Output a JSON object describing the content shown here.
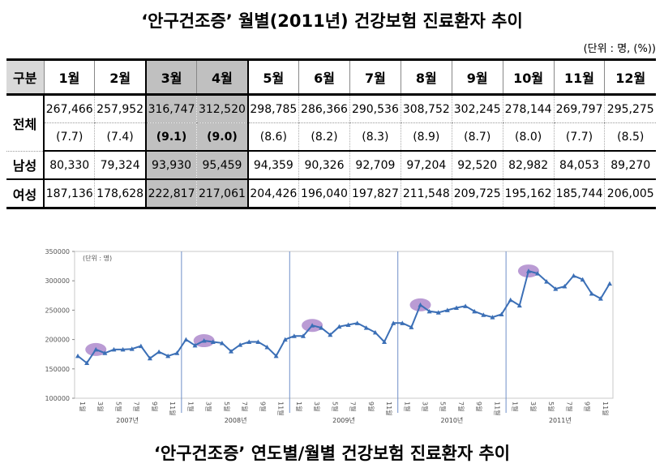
{
  "top_title": "‘안구건조증’ 월별(2011년) 건강보험 진료환자 추이",
  "bottom_title": "‘안구건조증’ 연도별/월별 건강보험 진료환자 추이",
  "unit_note": "(단위 : 명, (%))",
  "table": {
    "corner": "구분",
    "months": [
      "1월",
      "2월",
      "3월",
      "4월",
      "5월",
      "6월",
      "7월",
      "8월",
      "9월",
      "10월",
      "11월",
      "12월"
    ],
    "highlight_months": [
      "3월",
      "4월"
    ],
    "rows": {
      "total_label": "전체",
      "total": [
        "267,466",
        "257,952",
        "316,747",
        "312,520",
        "298,785",
        "286,366",
        "290,536",
        "308,752",
        "302,245",
        "278,144",
        "269,797",
        "295,275"
      ],
      "total_pct": [
        "(7.7)",
        "(7.4)",
        "(9.1)",
        "(9.0)",
        "(8.6)",
        "(8.2)",
        "(8.3)",
        "(8.9)",
        "(8.7)",
        "(8.0)",
        "(7.7)",
        "(8.5)"
      ],
      "male_label": "남성",
      "male": [
        "80,330",
        "79,324",
        "93,930",
        "95,459",
        "94,359",
        "90,326",
        "92,709",
        "97,204",
        "92,520",
        "82,982",
        "84,053",
        "89,270"
      ],
      "female_label": "여성",
      "female": [
        "187,136",
        "178,628",
        "222,817",
        "217,061",
        "204,426",
        "196,040",
        "197,827",
        "211,548",
        "209,725",
        "195,162",
        "185,744",
        "206,005"
      ]
    }
  },
  "chart_data": {
    "type": "line",
    "unit_label": "(단위 : 명)",
    "ylim": [
      100000,
      350000
    ],
    "yticks": [
      "100000",
      "150000",
      "200000",
      "250000",
      "300000",
      "350000"
    ],
    "x_tick_labels": [
      "1월",
      "3월",
      "5월",
      "7월",
      "9월",
      "11월"
    ],
    "years": [
      "2007년",
      "2008년",
      "2009년",
      "2010년",
      "2011년"
    ],
    "line_color": "#3b6fb6",
    "separator_color": "#6f8fc8",
    "highlight_color": "#a982c9",
    "highlight_months": [
      "2007년 3월",
      "2008년 3월",
      "2009년 3월",
      "2010년 3월",
      "2011년 3월"
    ],
    "series": [
      {
        "values": [
          172000,
          160000,
          183000,
          177000,
          183000,
          183000,
          184000,
          189000,
          168000,
          179000,
          172000,
          177000,
          200000,
          190000,
          198000,
          196000,
          194000,
          180000,
          191000,
          196000,
          196000,
          187000,
          172000,
          200000,
          206000,
          206000,
          224000,
          220000,
          208000,
          222000,
          225000,
          228000,
          220000,
          212000,
          196000,
          228000,
          228000,
          221000,
          259000,
          248000,
          246000,
          250000,
          254000,
          257000,
          248000,
          242000,
          238000,
          243000,
          267466,
          257952,
          316747,
          312520,
          298785,
          286366,
          290536,
          308752,
          302245,
          278144,
          269797,
          295275
        ]
      }
    ]
  }
}
